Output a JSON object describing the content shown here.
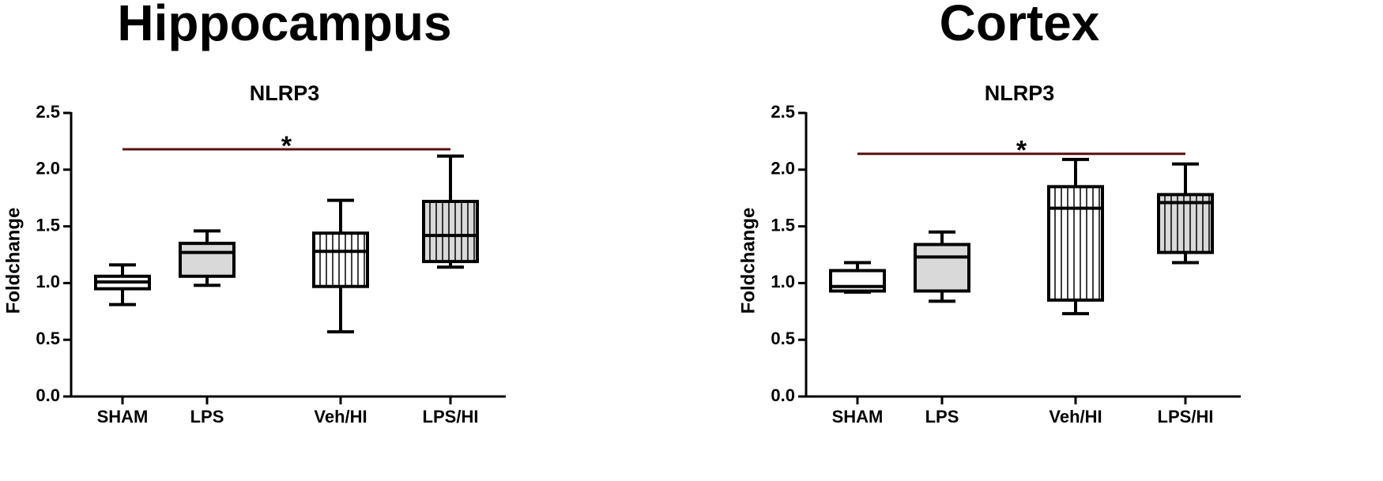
{
  "chart_data": [
    {
      "type": "box",
      "heading": "Hippocampus",
      "title": "NLRP3",
      "ylabel": "Foldchange",
      "categories": [
        "SHAM",
        "LPS",
        "Veh/HI",
        "LPS/HI"
      ],
      "boxes": [
        {
          "min": 0.81,
          "q1": 0.95,
          "median": 1.01,
          "q3": 1.06,
          "max": 1.16
        },
        {
          "min": 0.98,
          "q1": 1.06,
          "median": 1.27,
          "q3": 1.35,
          "max": 1.46
        },
        {
          "min": 0.57,
          "q1": 0.97,
          "median": 1.28,
          "q3": 1.44,
          "max": 1.73
        },
        {
          "min": 1.14,
          "q1": 1.19,
          "median": 1.42,
          "q3": 1.72,
          "max": 2.12
        }
      ],
      "colors": [
        "#ffffff",
        "#d9d9d9",
        "#ffffff",
        "#d9d9d9"
      ],
      "hatch": [
        false,
        false,
        true,
        true
      ],
      "ylim": [
        0,
        2.5
      ],
      "yticks": [
        {
          "value": 0,
          "label": "0.0"
        },
        0.5,
        {
          "value": 1,
          "label": "1.0"
        },
        1.5,
        {
          "value": 2,
          "label": "2.0"
        },
        2.5
      ],
      "annotation": {
        "text": "*",
        "y": 2.18,
        "color": "#5a1010"
      }
    },
    {
      "type": "box",
      "heading": "Cortex",
      "title": "NLRP3",
      "ylabel": "Foldchange",
      "categories": [
        "SHAM",
        "LPS",
        "Veh/HI",
        "LPS/HI"
      ],
      "boxes": [
        {
          "min": 0.92,
          "q1": 0.93,
          "median": 0.97,
          "q3": 1.11,
          "max": 1.18
        },
        {
          "min": 0.84,
          "q1": 0.93,
          "median": 1.23,
          "q3": 1.34,
          "max": 1.45
        },
        {
          "min": 0.73,
          "q1": 0.85,
          "median": 1.66,
          "q3": 1.85,
          "max": 2.09
        },
        {
          "min": 1.18,
          "q1": 1.27,
          "median": 1.71,
          "q3": 1.78,
          "max": 2.05
        }
      ],
      "colors": [
        "#ffffff",
        "#d9d9d9",
        "#ffffff",
        "#d9d9d9"
      ],
      "hatch": [
        false,
        false,
        true,
        true
      ],
      "ylim": [
        0,
        2.5
      ],
      "yticks": [
        {
          "value": 0,
          "label": "0.0"
        },
        0.5,
        {
          "value": 1,
          "label": "1.0"
        },
        1.5,
        {
          "value": 2,
          "label": "2.0"
        },
        2.5
      ],
      "annotation": {
        "text": "*",
        "y": 2.14,
        "color": "#5a1010"
      }
    }
  ]
}
